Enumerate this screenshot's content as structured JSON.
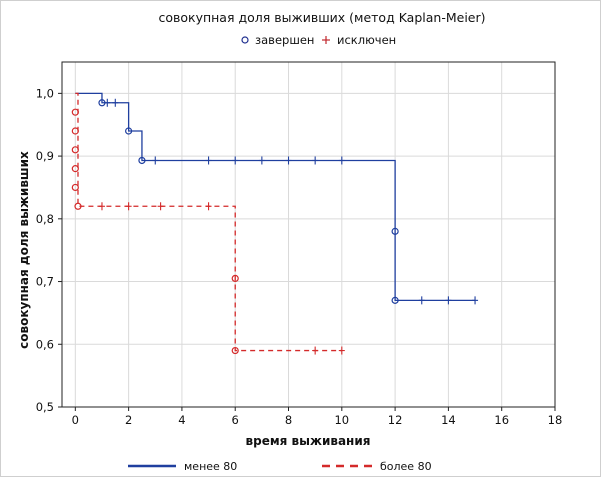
{
  "chart_data": {
    "type": "line",
    "title": "совокупная доля выживших (метод Kaplan-Meier)",
    "marker_legend": [
      {
        "symbol": "o",
        "label": "завершен",
        "color": "#1f2f8f"
      },
      {
        "symbol": "+",
        "label": "исключен",
        "color": "#c0272d"
      }
    ],
    "xlabel": "время выживания",
    "ylabel": "совокупная доля выживших",
    "xlim": [
      -0.5,
      18
    ],
    "ylim": [
      0.5,
      1.05
    ],
    "xticks": [
      0,
      2,
      4,
      6,
      8,
      10,
      12,
      14,
      16,
      18
    ],
    "yticks": [
      0.5,
      0.6,
      0.7,
      0.8,
      0.9,
      1.0
    ],
    "ytick_labels": [
      "0,5",
      "0,6",
      "0,7",
      "0,8",
      "0,9",
      "1,0"
    ],
    "grid": true,
    "legend_position": "bottom",
    "series": [
      {
        "name": "менее 80",
        "color": "#1f3f9f",
        "dash": "solid",
        "steps": [
          [
            0,
            1.0
          ],
          [
            1,
            0.985
          ],
          [
            2,
            0.94
          ],
          [
            2.5,
            0.893
          ],
          [
            12,
            0.67
          ],
          [
            15,
            0.67
          ]
        ],
        "events": [
          [
            1,
            0.985
          ],
          [
            2,
            0.94
          ],
          [
            2.5,
            0.893
          ],
          [
            12,
            0.78
          ],
          [
            12,
            0.67
          ]
        ],
        "censored": [
          [
            1.2,
            0.985
          ],
          [
            1.5,
            0.985
          ],
          [
            3,
            0.893
          ],
          [
            5,
            0.893
          ],
          [
            6,
            0.893
          ],
          [
            7,
            0.893
          ],
          [
            8,
            0.893
          ],
          [
            9,
            0.893
          ],
          [
            10,
            0.893
          ],
          [
            13,
            0.67
          ],
          [
            14,
            0.67
          ],
          [
            15,
            0.67
          ]
        ]
      },
      {
        "name": "более 80",
        "color": "#d42a2a",
        "dash": "dashed",
        "steps": [
          [
            0,
            1.0
          ],
          [
            0.1,
            0.82
          ],
          [
            6,
            0.59
          ],
          [
            10,
            0.59
          ]
        ],
        "events": [
          [
            0,
            0.97
          ],
          [
            0,
            0.94
          ],
          [
            0,
            0.91
          ],
          [
            0,
            0.88
          ],
          [
            0,
            0.85
          ],
          [
            0.1,
            0.82
          ],
          [
            6,
            0.705
          ],
          [
            6,
            0.59
          ]
        ],
        "censored": [
          [
            1,
            0.82
          ],
          [
            2,
            0.82
          ],
          [
            3.2,
            0.82
          ],
          [
            5,
            0.82
          ],
          [
            9,
            0.59
          ],
          [
            10,
            0.59
          ]
        ]
      }
    ]
  }
}
